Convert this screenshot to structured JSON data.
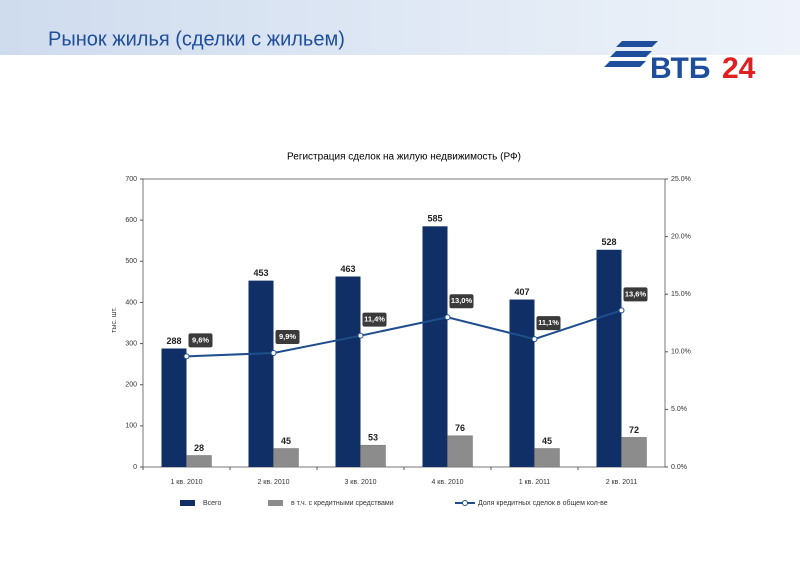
{
  "header": {
    "title": "Рынок жилья (сделки с жильем)",
    "logo": {
      "text": "ВТБ",
      "number": "24"
    }
  },
  "chart_data": {
    "type": "bar",
    "title": "Регистрация сделок на жилую недвижимость (РФ)",
    "y_label": "тыс. шт.",
    "categories": [
      "1 кв. 2010",
      "2 кв. 2010",
      "3 кв. 2010",
      "4 кв. 2010",
      "1 кв. 2011",
      "2 кв. 2011"
    ],
    "series": [
      {
        "name": "Всего",
        "color": "#0f2f66",
        "values": [
          288,
          453,
          463,
          585,
          407,
          528
        ]
      },
      {
        "name": "в т.ч. с кредитными средствами",
        "color": "#8c8c8c",
        "values": [
          28,
          45,
          53,
          76,
          45,
          72
        ]
      },
      {
        "name": "Доля кредитных сделок в общем кол-ве",
        "color": "#1f4e8c",
        "type": "line",
        "axis": "y2",
        "values": [
          9.6,
          9.9,
          11.4,
          13.0,
          11.1,
          13.6
        ],
        "value_labels": [
          "9,6%",
          "9,9%",
          "11,4%",
          "13,0%",
          "11,1%",
          "13,6%"
        ]
      }
    ],
    "ylim": [
      0,
      700
    ],
    "yticks": [
      0,
      100,
      200,
      300,
      400,
      500,
      600,
      700
    ],
    "y2lim": [
      0,
      25
    ],
    "y2ticks": [
      {
        "value": 0,
        "label": "0.0%"
      },
      {
        "value": 5,
        "label": "5.0%"
      },
      {
        "value": 10,
        "label": "10.0%"
      },
      {
        "value": 15,
        "label": "15.0%"
      },
      {
        "value": 20,
        "label": "20.0%"
      },
      {
        "value": 25,
        "label": "25.0%"
      }
    ],
    "legend": "bottom"
  }
}
